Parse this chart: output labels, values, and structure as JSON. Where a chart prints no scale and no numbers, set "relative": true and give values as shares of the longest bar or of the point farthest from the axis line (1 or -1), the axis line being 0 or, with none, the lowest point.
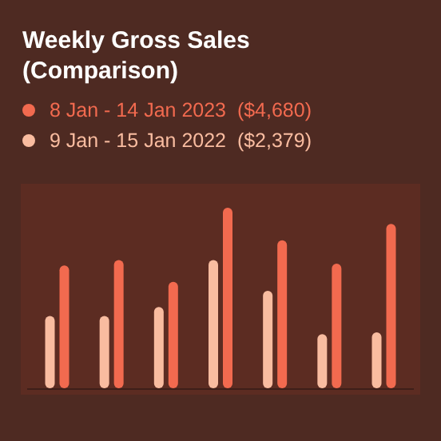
{
  "chart_data": {
    "type": "bar",
    "title": "Weekly Gross Sales\n(Comparison)",
    "categories": [
      null,
      null,
      null,
      null,
      null,
      null,
      null
    ],
    "relative": true,
    "legend": "top left",
    "series": [
      {
        "name": "8 Jan - 14 Jan 2023  ($4,680)",
        "color": "#f26a4f",
        "values": [
          0.68,
          0.71,
          0.59,
          1,
          0.82,
          0.69,
          0.91
        ]
      },
      {
        "name": "9 Jan - 15 Jan 2022  ($2,379)",
        "color": "#f9bca0",
        "values": [
          0.4,
          0.4,
          0.45,
          0.71,
          0.54,
          0.3,
          0.31
        ]
      }
    ]
  }
}
